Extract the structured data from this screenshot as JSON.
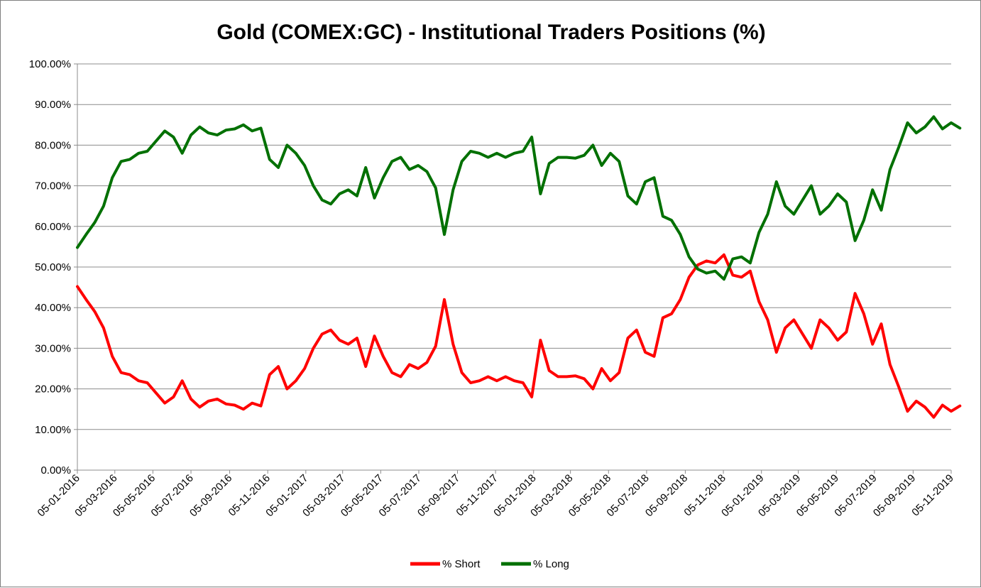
{
  "chart_data": {
    "type": "line",
    "title": "Gold (COMEX:GC) - Institutional Traders Positions (%)",
    "xlabel": "",
    "ylabel": "",
    "ylim": [
      0,
      100
    ],
    "y_ticks": [
      "0.00%",
      "10.00%",
      "20.00%",
      "30.00%",
      "40.00%",
      "50.00%",
      "60.00%",
      "70.00%",
      "80.00%",
      "90.00%",
      "100.00%"
    ],
    "x_ticks": [
      "05-01-2016",
      "05-03-2016",
      "05-05-2016",
      "05-07-2016",
      "05-09-2016",
      "05-11-2016",
      "05-01-2017",
      "05-03-2017",
      "05-05-2017",
      "05-07-2017",
      "05-09-2017",
      "05-11-2017",
      "05-01-2018",
      "05-03-2018",
      "05-05-2018",
      "05-07-2018",
      "05-09-2018",
      "05-11-2018",
      "05-01-2019",
      "05-03-2019",
      "05-05-2019",
      "05-07-2019",
      "05-09-2019",
      "05-11-2019"
    ],
    "grid": "horizontal",
    "legend": "bottom",
    "series": [
      {
        "name": "% Short",
        "color": "#ff0000",
        "x": [
          "2016-01-05",
          "2016-01-19",
          "2016-02-02",
          "2016-02-16",
          "2016-03-01",
          "2016-03-15",
          "2016-03-29",
          "2016-04-12",
          "2016-04-26",
          "2016-05-10",
          "2016-05-24",
          "2016-06-07",
          "2016-06-21",
          "2016-07-05",
          "2016-07-19",
          "2016-08-02",
          "2016-08-16",
          "2016-08-30",
          "2016-09-13",
          "2016-09-27",
          "2016-10-11",
          "2016-10-25",
          "2016-11-08",
          "2016-11-22",
          "2016-12-06",
          "2016-12-20",
          "2017-01-03",
          "2017-01-17",
          "2017-01-31",
          "2017-02-14",
          "2017-02-28",
          "2017-03-14",
          "2017-03-28",
          "2017-04-11",
          "2017-04-25",
          "2017-05-09",
          "2017-05-23",
          "2017-06-06",
          "2017-06-20",
          "2017-07-04",
          "2017-07-18",
          "2017-08-01",
          "2017-08-15",
          "2017-08-29",
          "2017-09-12",
          "2017-09-26",
          "2017-10-10",
          "2017-10-24",
          "2017-11-07",
          "2017-11-21",
          "2017-12-05",
          "2017-12-19",
          "2018-01-02",
          "2018-01-16",
          "2018-01-30",
          "2018-02-13",
          "2018-02-27",
          "2018-03-13",
          "2018-03-27",
          "2018-04-10",
          "2018-04-24",
          "2018-05-08",
          "2018-05-22",
          "2018-06-05",
          "2018-06-19",
          "2018-07-03",
          "2018-07-17",
          "2018-07-31",
          "2018-08-14",
          "2018-08-28",
          "2018-09-11",
          "2018-09-25",
          "2018-10-09",
          "2018-10-23",
          "2018-11-06",
          "2018-11-20",
          "2018-12-04",
          "2018-12-18",
          "2019-01-01",
          "2019-01-15",
          "2019-01-29",
          "2019-02-12",
          "2019-02-26",
          "2019-03-12",
          "2019-03-26",
          "2019-04-09",
          "2019-04-23",
          "2019-05-07",
          "2019-05-21",
          "2019-06-04",
          "2019-06-18",
          "2019-07-02",
          "2019-07-16",
          "2019-07-30",
          "2019-08-13",
          "2019-08-27",
          "2019-09-10",
          "2019-09-24",
          "2019-10-08",
          "2019-10-22",
          "2019-11-05",
          "2019-11-19"
        ],
        "values": [
          45.2,
          42.0,
          39.0,
          35.0,
          28.0,
          24.0,
          23.5,
          22.0,
          21.5,
          19.0,
          16.5,
          18.0,
          22.0,
          17.5,
          15.5,
          17.0,
          17.5,
          16.3,
          16.0,
          15.0,
          16.5,
          15.8,
          23.5,
          25.5,
          20.0,
          22.0,
          25.0,
          30.0,
          33.5,
          34.5,
          32.0,
          31.0,
          32.5,
          25.5,
          33.0,
          28.0,
          24.0,
          23.0,
          26.0,
          25.0,
          26.5,
          30.5,
          42.0,
          31.0,
          24.0,
          21.5,
          22.0,
          23.0,
          22.0,
          23.0,
          22.0,
          21.5,
          18.0,
          32.0,
          24.5,
          23.0,
          23.0,
          23.2,
          22.5,
          20.0,
          25.0,
          22.0,
          24.0,
          32.5,
          34.5,
          29.0,
          28.0,
          37.5,
          38.5,
          42.0,
          47.5,
          50.5,
          51.5,
          51.0,
          53.0,
          48.0,
          47.5,
          49.0,
          41.5,
          37.0,
          29.0,
          35.0,
          37.0,
          33.5,
          30.0,
          37.0,
          35.0,
          32.0,
          34.0,
          43.5,
          38.5,
          31.0,
          36.0,
          26.0,
          20.5,
          14.5,
          17.0,
          15.5,
          13.0,
          16.0,
          14.5,
          15.8
        ]
      },
      {
        "name": "% Long",
        "color": "#007000",
        "x": [
          "2016-01-05",
          "2016-01-19",
          "2016-02-02",
          "2016-02-16",
          "2016-03-01",
          "2016-03-15",
          "2016-03-29",
          "2016-04-12",
          "2016-04-26",
          "2016-05-10",
          "2016-05-24",
          "2016-06-07",
          "2016-06-21",
          "2016-07-05",
          "2016-07-19",
          "2016-08-02",
          "2016-08-16",
          "2016-08-30",
          "2016-09-13",
          "2016-09-27",
          "2016-10-11",
          "2016-10-25",
          "2016-11-08",
          "2016-11-22",
          "2016-12-06",
          "2016-12-20",
          "2017-01-03",
          "2017-01-17",
          "2017-01-31",
          "2017-02-14",
          "2017-02-28",
          "2017-03-14",
          "2017-03-28",
          "2017-04-11",
          "2017-04-25",
          "2017-05-09",
          "2017-05-23",
          "2017-06-06",
          "2017-06-20",
          "2017-07-04",
          "2017-07-18",
          "2017-08-01",
          "2017-08-15",
          "2017-08-29",
          "2017-09-12",
          "2017-09-26",
          "2017-10-10",
          "2017-10-24",
          "2017-11-07",
          "2017-11-21",
          "2017-12-05",
          "2017-12-19",
          "2018-01-02",
          "2018-01-16",
          "2018-01-30",
          "2018-02-13",
          "2018-02-27",
          "2018-03-13",
          "2018-03-27",
          "2018-04-10",
          "2018-04-24",
          "2018-05-08",
          "2018-05-22",
          "2018-06-05",
          "2018-06-19",
          "2018-07-03",
          "2018-07-17",
          "2018-07-31",
          "2018-08-14",
          "2018-08-28",
          "2018-09-11",
          "2018-09-25",
          "2018-10-09",
          "2018-10-23",
          "2018-11-06",
          "2018-11-20",
          "2018-12-04",
          "2018-12-18",
          "2019-01-01",
          "2019-01-15",
          "2019-01-29",
          "2019-02-12",
          "2019-02-26",
          "2019-03-12",
          "2019-03-26",
          "2019-04-09",
          "2019-04-23",
          "2019-05-07",
          "2019-05-21",
          "2019-06-04",
          "2019-06-18",
          "2019-07-02",
          "2019-07-16",
          "2019-07-30",
          "2019-08-13",
          "2019-08-27",
          "2019-09-10",
          "2019-09-24",
          "2019-10-08",
          "2019-10-22",
          "2019-11-05",
          "2019-11-19"
        ],
        "values": [
          54.8,
          58.0,
          61.0,
          65.0,
          72.0,
          76.0,
          76.5,
          78.0,
          78.5,
          81.0,
          83.5,
          82.0,
          78.0,
          82.5,
          84.5,
          83.0,
          82.5,
          83.7,
          84.0,
          85.0,
          83.5,
          84.2,
          76.5,
          74.5,
          80.0,
          78.0,
          75.0,
          70.0,
          66.5,
          65.5,
          68.0,
          69.0,
          67.5,
          74.5,
          67.0,
          72.0,
          76.0,
          77.0,
          74.0,
          75.0,
          73.5,
          69.5,
          58.0,
          69.0,
          76.0,
          78.5,
          78.0,
          77.0,
          78.0,
          77.0,
          78.0,
          78.5,
          82.0,
          68.0,
          75.5,
          77.0,
          77.0,
          76.8,
          77.5,
          80.0,
          75.0,
          78.0,
          76.0,
          67.5,
          65.5,
          71.0,
          72.0,
          62.5,
          61.5,
          58.0,
          52.5,
          49.5,
          48.5,
          49.0,
          47.0,
          52.0,
          52.5,
          51.0,
          58.5,
          63.0,
          71.0,
          65.0,
          63.0,
          66.5,
          70.0,
          63.0,
          65.0,
          68.0,
          66.0,
          56.5,
          61.5,
          69.0,
          64.0,
          74.0,
          79.5,
          85.5,
          83.0,
          84.5,
          87.0,
          84.0,
          85.5,
          84.2
        ]
      }
    ]
  }
}
